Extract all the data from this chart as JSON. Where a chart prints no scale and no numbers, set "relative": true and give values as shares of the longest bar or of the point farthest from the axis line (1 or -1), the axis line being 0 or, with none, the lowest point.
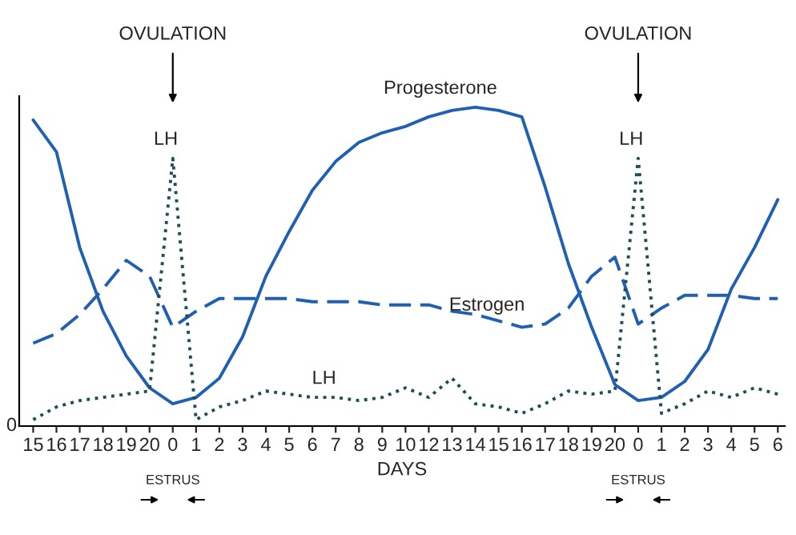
{
  "chart_data": {
    "type": "line",
    "relative": true,
    "xlabel": "DAYS",
    "legend": false,
    "grid": false,
    "categories": [
      "15",
      "16",
      "17",
      "18",
      "19",
      "20",
      "0",
      "1",
      "2",
      "3",
      "4",
      "5",
      "6",
      "7",
      "8",
      "9",
      "10",
      "12",
      "13",
      "14",
      "15",
      "16",
      "17",
      "18",
      "19",
      "20",
      "0",
      "1",
      "2",
      "3",
      "4",
      "5",
      "6"
    ],
    "series": [
      {
        "name": "Progesterone",
        "color": "#1f5fb4",
        "line_style": "solid",
        "values": [
          0.96,
          0.86,
          0.56,
          0.36,
          0.22,
          0.12,
          0.07,
          0.09,
          0.15,
          0.28,
          0.47,
          0.61,
          0.74,
          0.83,
          0.89,
          0.92,
          0.94,
          0.97,
          0.99,
          1.0,
          0.99,
          0.97,
          0.75,
          0.51,
          0.31,
          0.13,
          0.08,
          0.09,
          0.14,
          0.24,
          0.43,
          0.56,
          0.71
        ]
      },
      {
        "name": "Estrogen",
        "color": "#1f5fb4",
        "line_style": "dashed",
        "values": [
          0.26,
          0.29,
          0.35,
          0.43,
          0.52,
          0.47,
          0.31,
          0.36,
          0.4,
          0.4,
          0.4,
          0.4,
          0.39,
          0.39,
          0.39,
          0.38,
          0.38,
          0.38,
          0.36,
          0.35,
          0.33,
          0.31,
          0.32,
          0.37,
          0.47,
          0.53,
          0.32,
          0.37,
          0.41,
          0.41,
          0.41,
          0.4,
          0.4
        ]
      },
      {
        "name": "LH",
        "color": "#1e4f55",
        "line_style": "dotted",
        "values": [
          0.02,
          0.06,
          0.08,
          0.09,
          0.1,
          0.11,
          0.84,
          0.02,
          0.06,
          0.08,
          0.11,
          0.1,
          0.09,
          0.09,
          0.08,
          0.09,
          0.12,
          0.09,
          0.15,
          0.07,
          0.06,
          0.04,
          0.07,
          0.11,
          0.1,
          0.11,
          0.84,
          0.04,
          0.07,
          0.11,
          0.09,
          0.12,
          0.1
        ]
      }
    ],
    "annotations": [
      "OVULATION",
      "OVULATION",
      "LH",
      "LH",
      "ESTRUS",
      "ESTRUS",
      "0"
    ]
  }
}
